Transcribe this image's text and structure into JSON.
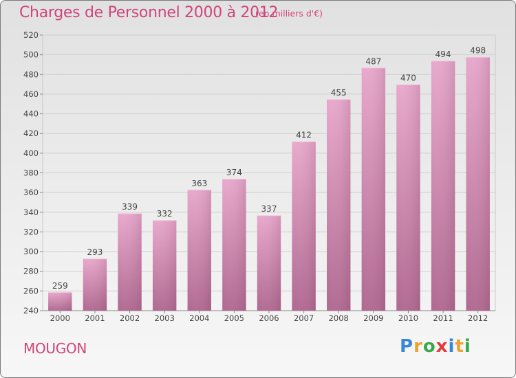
{
  "title": "Charges de Personnel 2000 à 2012",
  "subtitle": "(en milliers d'€)",
  "town": "MOUGON",
  "logo": {
    "letters": [
      "P",
      "r",
      "o",
      "x",
      "i",
      "t",
      "i"
    ],
    "colors": [
      "#3a86d6",
      "#f0a22b",
      "#3aa84a",
      "#e23a3a",
      "#3a86d6",
      "#f0a22b",
      "#3aa84a"
    ]
  },
  "colors": {
    "bar_top": "#e8a8cc",
    "bar_bottom": "#b06890",
    "accent": "#d0457a"
  },
  "chart_data": {
    "type": "bar",
    "categories": [
      "2000",
      "2001",
      "2002",
      "2003",
      "2004",
      "2005",
      "2006",
      "2007",
      "2008",
      "2009",
      "2010",
      "2011",
      "2012"
    ],
    "values": [
      259,
      293,
      339,
      332,
      363,
      374,
      337,
      412,
      455,
      487,
      470,
      494,
      498
    ],
    "ylim": [
      240,
      520
    ],
    "yticks": [
      240,
      260,
      280,
      300,
      320,
      340,
      360,
      380,
      400,
      420,
      440,
      460,
      480,
      500,
      520
    ],
    "grid": true,
    "data_labels": true
  }
}
